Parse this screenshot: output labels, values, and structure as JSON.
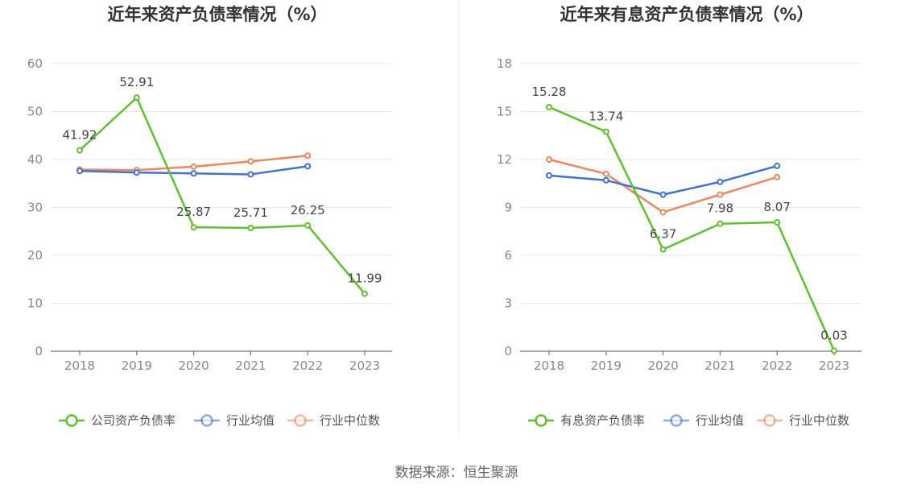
{
  "source_label": "数据来源：恒生聚源",
  "colors": {
    "company": "#5cc42a",
    "avg": "#3d72d6",
    "median": "#f0875a"
  },
  "chart_data": [
    {
      "type": "line",
      "title": "近年来资产负债率情况（%）",
      "categories": [
        "2018",
        "2019",
        "2020",
        "2021",
        "2022",
        "2023"
      ],
      "ylim": [
        0,
        60
      ],
      "yticks": [
        0,
        10,
        20,
        30,
        40,
        50,
        60
      ],
      "series": [
        {
          "name": "公司资产负债率",
          "key": "company",
          "values": [
            41.92,
            52.91,
            25.87,
            25.71,
            26.25,
            11.99
          ],
          "labels": [
            "41.92",
            "52.91",
            "25.87",
            "25.71",
            "26.25",
            "11.99"
          ]
        },
        {
          "name": "行业均值",
          "key": "avg",
          "values": [
            37.6,
            37.3,
            37.1,
            36.9,
            38.6,
            null
          ]
        },
        {
          "name": "行业中位数",
          "key": "median",
          "values": [
            37.9,
            37.8,
            38.5,
            39.6,
            40.8,
            null
          ]
        }
      ]
    },
    {
      "type": "line",
      "title": "近年来有息资产负债率情况（%）",
      "categories": [
        "2018",
        "2019",
        "2020",
        "2021",
        "2022",
        "2023"
      ],
      "ylim": [
        0,
        18
      ],
      "yticks": [
        0,
        3,
        6,
        9,
        12,
        15,
        18
      ],
      "series": [
        {
          "name": "有息资产负债率",
          "key": "company",
          "values": [
            15.28,
            13.74,
            6.37,
            7.98,
            8.07,
            0.03
          ],
          "labels": [
            "15.28",
            "13.74",
            "6.37",
            "7.98",
            "8.07",
            "0.03"
          ]
        },
        {
          "name": "行业均值",
          "key": "avg",
          "values": [
            11.0,
            10.7,
            9.8,
            10.6,
            11.6,
            null
          ]
        },
        {
          "name": "行业中位数",
          "key": "median",
          "values": [
            12.0,
            11.1,
            8.7,
            9.8,
            10.9,
            null
          ]
        }
      ]
    }
  ]
}
